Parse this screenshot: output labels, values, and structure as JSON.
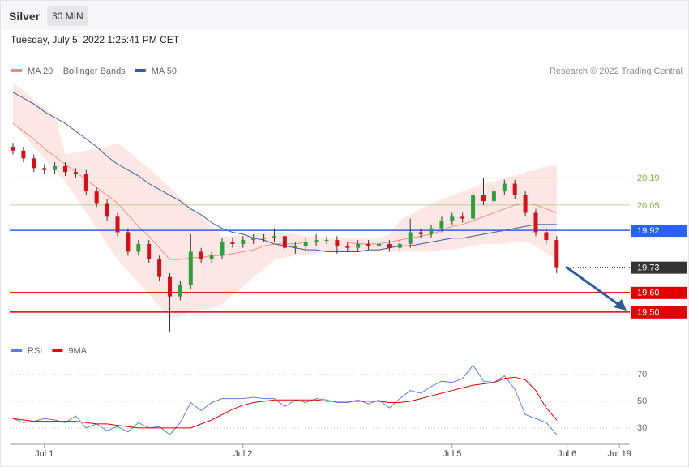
{
  "header": {
    "title": "Silver",
    "interval": "30 MIN",
    "timestamp": "Tuesday, July 5, 2022 1:25:41 PM CET"
  },
  "chart_data": [
    {
      "type": "candlestick",
      "credit": "Research © 2022 Trading Central",
      "up_color": "#2e9e3e",
      "down_color": "#d0121b",
      "x": [
        null,
        null,
        null,
        "Jul 1",
        null,
        null,
        null,
        null,
        null,
        null,
        null,
        null,
        null,
        null,
        null,
        null,
        null,
        null,
        null,
        null,
        null,
        null,
        "Jul 2",
        null,
        null,
        null,
        null,
        null,
        null,
        null,
        null,
        null,
        null,
        null,
        null,
        null,
        null,
        null,
        null,
        null,
        null,
        null,
        "Jul 5",
        null,
        null,
        null,
        null,
        null,
        null,
        null,
        null,
        null,
        null,
        "Jul 6",
        null,
        null,
        null,
        null,
        "Jul 19"
      ],
      "open": [
        20.35,
        20.33,
        20.29,
        20.24,
        20.23,
        20.25,
        20.22,
        20.21,
        20.12,
        20.06,
        19.99,
        19.91,
        19.81,
        19.85,
        19.77,
        19.68,
        19.58,
        19.64,
        19.81,
        19.77,
        19.79,
        19.86,
        19.85,
        19.87,
        19.88,
        19.88,
        19.89,
        19.83,
        19.84,
        19.86,
        19.87,
        19.87,
        19.84,
        19.83,
        19.85,
        19.84,
        19.85,
        19.83,
        19.85,
        19.91,
        19.9,
        19.93,
        19.97,
        19.99,
        19.98,
        20.1,
        20.07,
        20.12,
        20.16,
        20.1,
        20.01,
        19.91,
        19.87,
        null,
        null,
        null,
        null,
        null,
        null
      ],
      "high": [
        20.37,
        20.35,
        20.31,
        20.26,
        20.27,
        20.27,
        20.24,
        20.23,
        20.14,
        20.08,
        20.01,
        19.93,
        19.87,
        19.87,
        19.79,
        19.7,
        19.66,
        19.9,
        19.83,
        19.81,
        19.88,
        19.88,
        19.89,
        19.9,
        19.9,
        19.93,
        19.91,
        19.86,
        19.88,
        19.9,
        19.89,
        19.89,
        19.86,
        19.87,
        19.87,
        19.87,
        19.87,
        19.87,
        19.98,
        19.93,
        19.95,
        19.99,
        20.01,
        20.01,
        20.12,
        20.19,
        20.14,
        20.18,
        20.18,
        20.12,
        20.03,
        19.93,
        19.89,
        null,
        null,
        null,
        null,
        null,
        null
      ],
      "low": [
        20.31,
        20.27,
        20.22,
        20.21,
        20.21,
        20.2,
        20.19,
        20.1,
        20.04,
        19.97,
        19.89,
        19.79,
        19.79,
        19.75,
        19.66,
        19.4,
        19.56,
        19.62,
        19.75,
        19.75,
        19.77,
        19.83,
        19.83,
        19.85,
        19.86,
        19.86,
        19.81,
        19.8,
        19.82,
        19.84,
        19.85,
        19.8,
        19.81,
        19.81,
        19.82,
        19.82,
        19.81,
        19.81,
        19.83,
        19.88,
        19.88,
        19.91,
        19.95,
        19.96,
        19.96,
        20.05,
        20.05,
        20.1,
        20.08,
        19.99,
        19.89,
        19.85,
        19.7,
        null,
        null,
        null,
        null,
        null,
        null
      ],
      "close": [
        20.33,
        20.29,
        20.24,
        20.23,
        20.25,
        20.22,
        20.21,
        20.12,
        20.06,
        19.99,
        19.91,
        19.81,
        19.85,
        19.77,
        19.68,
        19.58,
        19.64,
        19.81,
        19.77,
        19.79,
        19.86,
        19.85,
        19.87,
        19.88,
        19.88,
        19.89,
        19.83,
        19.84,
        19.86,
        19.87,
        19.87,
        19.84,
        19.83,
        19.85,
        19.84,
        19.85,
        19.83,
        19.85,
        19.91,
        19.9,
        19.93,
        19.97,
        19.99,
        19.98,
        20.1,
        20.07,
        20.12,
        20.16,
        20.1,
        20.01,
        19.91,
        19.87,
        19.73,
        null,
        null,
        null,
        null,
        null,
        null
      ],
      "series": [
        {
          "name": "MA 20 + Bollinger Bands",
          "color": "#f28b82",
          "band_color": "#fde3e1",
          "values": [
            20.47,
            20.43,
            20.39,
            20.34,
            20.3,
            20.26,
            20.22,
            20.18,
            20.14,
            20.1,
            20.06,
            20.0,
            19.94,
            19.89,
            19.83,
            19.77,
            19.77,
            19.78,
            19.78,
            19.79,
            19.79,
            19.8,
            19.81,
            19.82,
            19.84,
            19.85,
            19.85,
            19.85,
            19.86,
            19.86,
            19.86,
            19.86,
            19.86,
            19.85,
            19.85,
            19.85,
            19.86,
            19.87,
            19.88,
            19.89,
            19.9,
            19.92,
            19.94,
            19.95,
            19.97,
            19.99,
            20.01,
            20.03,
            20.05,
            20.06,
            20.05,
            20.03,
            20.01,
            null,
            null,
            null,
            null,
            null,
            null
          ],
          "band_upper": [
            20.68,
            20.64,
            20.59,
            20.55,
            20.51,
            20.31,
            20.32,
            20.33,
            20.34,
            20.35,
            20.37,
            20.33,
            20.28,
            20.24,
            20.19,
            20.14,
            20.09,
            20.04,
            19.99,
            19.94,
            19.89,
            19.89,
            19.9,
            19.9,
            19.91,
            19.91,
            19.91,
            19.9,
            19.89,
            19.89,
            19.88,
            19.88,
            19.88,
            19.88,
            19.88,
            19.88,
            19.9,
            19.97,
            20.0,
            20.03,
            20.06,
            20.08,
            20.1,
            20.12,
            20.14,
            20.16,
            20.17,
            20.19,
            20.2,
            20.22,
            20.23,
            20.25,
            20.26,
            null,
            null,
            null,
            null,
            null,
            null
          ],
          "band_lower": [
            20.47,
            20.41,
            20.35,
            20.29,
            20.23,
            20.17,
            20.09,
            20.01,
            19.93,
            19.85,
            19.77,
            19.71,
            19.65,
            19.59,
            19.53,
            19.47,
            19.48,
            19.5,
            19.51,
            19.52,
            19.54,
            19.59,
            19.63,
            19.68,
            19.72,
            19.77,
            19.78,
            19.79,
            19.79,
            19.8,
            19.81,
            19.81,
            19.81,
            19.81,
            19.81,
            19.81,
            19.81,
            19.81,
            19.81,
            19.81,
            19.81,
            19.82,
            19.82,
            19.83,
            19.84,
            19.85,
            19.85,
            19.85,
            19.86,
            19.86,
            19.84,
            19.8,
            19.77,
            null,
            null,
            null,
            null,
            null,
            null
          ]
        },
        {
          "name": "MA 50",
          "color": "#3a5a9a",
          "values": [
            20.63,
            20.6,
            20.57,
            20.53,
            20.5,
            20.47,
            20.43,
            20.39,
            20.35,
            20.3,
            20.26,
            20.23,
            20.2,
            20.16,
            20.13,
            20.1,
            20.07,
            20.03,
            20.0,
            19.96,
            19.93,
            19.91,
            19.9,
            19.88,
            19.87,
            19.85,
            19.84,
            19.83,
            19.82,
            19.82,
            19.81,
            19.81,
            19.81,
            19.81,
            19.82,
            19.82,
            19.83,
            19.84,
            19.84,
            19.85,
            19.86,
            19.87,
            19.88,
            19.88,
            19.89,
            19.9,
            19.91,
            19.92,
            19.93,
            19.94,
            19.95,
            19.95,
            19.95,
            null,
            null,
            null,
            null,
            null,
            null
          ]
        }
      ],
      "ylim": [
        19.37,
        20.7
      ],
      "levels": [
        {
          "value": 20.19,
          "color": "#7cb342",
          "label_fill": false
        },
        {
          "value": 20.05,
          "color": "#7cb342",
          "label_fill": false
        },
        {
          "value": 19.92,
          "color": "#2962ff",
          "label_fill": true
        },
        {
          "value": 19.73,
          "color": "#333333",
          "label_fill": true,
          "line": "dotted"
        },
        {
          "value": 19.6,
          "label": "19.60",
          "color": "#e00000",
          "label_fill": true
        },
        {
          "value": 19.5,
          "label": "19.50",
          "color": "#e00000",
          "label_fill": true
        }
      ]
    },
    {
      "type": "line",
      "series": [
        {
          "name": "RSI",
          "color": "#5b7fd6",
          "values": [
            37,
            34,
            35,
            37,
            36,
            34,
            39,
            30,
            33,
            28,
            31,
            27,
            34,
            30,
            31,
            25,
            34,
            49,
            43,
            49,
            52,
            52,
            52,
            53,
            52,
            52,
            46,
            51,
            49,
            52,
            51,
            49,
            49,
            51,
            48,
            51,
            45,
            52,
            58,
            56,
            61,
            65,
            64,
            67,
            77,
            65,
            64,
            69,
            59,
            40,
            37,
            34,
            25,
            null,
            null,
            null,
            null,
            null,
            null
          ]
        },
        {
          "name": "9MA",
          "color": "#e00000",
          "values": [
            37,
            36,
            35,
            35,
            35,
            35,
            35,
            34,
            33,
            33,
            32,
            31,
            30,
            30,
            30,
            30,
            30,
            30,
            33,
            36,
            40,
            44,
            47,
            49,
            50,
            51,
            51,
            51,
            51,
            51,
            50,
            50,
            50,
            50,
            50,
            50,
            49,
            49,
            50,
            52,
            54,
            56,
            58,
            60,
            62,
            63,
            64,
            67,
            68,
            66,
            58,
            45,
            36,
            null,
            null,
            null,
            null,
            null,
            null
          ]
        }
      ],
      "ylim": [
        19,
        83
      ],
      "yticks": [
        30,
        50,
        70
      ],
      "grid": true
    }
  ]
}
